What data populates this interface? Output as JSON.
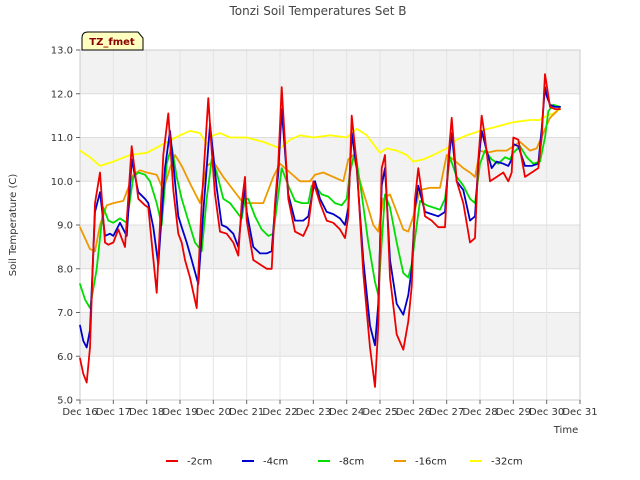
{
  "chart_data": {
    "type": "line",
    "title": "Tonzi Soil Temperatures Set B",
    "xlabel": "Time",
    "ylabel": "Soil Temperature (C)",
    "tag": "TZ_fmet",
    "xlim": [
      16,
      31
    ],
    "ylim": [
      5.0,
      13.0
    ],
    "x_ticks": [
      16,
      17,
      18,
      19,
      20,
      21,
      22,
      23,
      24,
      25,
      26,
      27,
      28,
      29,
      30,
      31
    ],
    "x_tick_labels": [
      "Dec 16",
      "Dec 17",
      "Dec 18",
      "Dec 19",
      "Dec 20",
      "Dec 21",
      "Dec 22",
      "Dec 23",
      "Dec 24",
      "Dec 25",
      "Dec 26",
      "Dec 27",
      "Dec 28",
      "Dec 29",
      "Dec 30",
      "Dec 31"
    ],
    "y_ticks": [
      5.0,
      6.0,
      7.0,
      8.0,
      9.0,
      10.0,
      11.0,
      12.0,
      13.0
    ],
    "y_tick_labels": [
      "5.0",
      "6.0",
      "7.0",
      "8.0",
      "9.0",
      "10.0",
      "11.0",
      "12.0",
      "13.0"
    ],
    "grid": true,
    "legend_position": "bottom",
    "series": [
      {
        "name": "-2cm",
        "color": "#ee0000",
        "x": [
          16.0,
          16.1,
          16.2,
          16.3,
          16.45,
          16.6,
          16.75,
          16.85,
          17.0,
          17.15,
          17.35,
          17.55,
          17.75,
          17.95,
          18.05,
          18.15,
          18.3,
          18.5,
          18.65,
          18.8,
          18.95,
          19.05,
          19.15,
          19.3,
          19.5,
          19.65,
          19.85,
          19.95,
          20.05,
          20.2,
          20.4,
          20.6,
          20.75,
          20.85,
          20.95,
          21.0,
          21.2,
          21.4,
          21.6,
          21.75,
          21.85,
          21.95,
          22.05,
          22.25,
          22.45,
          22.7,
          22.85,
          22.95,
          23.0,
          23.2,
          23.4,
          23.6,
          23.8,
          23.95,
          24.05,
          24.15,
          24.3,
          24.5,
          24.7,
          24.85,
          24.95,
          25.05,
          25.15,
          25.3,
          25.5,
          25.7,
          25.85,
          25.95,
          26.05,
          26.15,
          26.35,
          26.55,
          26.75,
          26.95,
          27.05,
          27.15,
          27.3,
          27.5,
          27.7,
          27.85,
          27.95,
          28.05,
          28.15,
          28.3,
          28.5,
          28.7,
          28.85,
          28.95,
          29.0,
          29.15,
          29.35,
          29.55,
          29.75,
          29.85,
          29.95,
          30.0,
          30.1,
          30.25,
          30.4
        ],
        "y": [
          5.95,
          5.6,
          5.4,
          6.2,
          9.5,
          10.2,
          8.6,
          8.55,
          8.6,
          8.9,
          8.5,
          10.8,
          9.6,
          9.45,
          9.4,
          8.6,
          7.45,
          10.6,
          11.55,
          9.8,
          8.8,
          8.6,
          8.2,
          7.8,
          7.1,
          9.5,
          11.9,
          10.7,
          9.7,
          8.85,
          8.8,
          8.6,
          8.3,
          9.5,
          10.1,
          9.1,
          8.2,
          8.1,
          8.0,
          8.0,
          9.5,
          10.4,
          12.15,
          9.6,
          8.85,
          8.75,
          9.0,
          9.6,
          10.0,
          9.5,
          9.1,
          9.05,
          8.9,
          8.7,
          9.2,
          11.5,
          10.4,
          7.9,
          6.2,
          5.3,
          6.7,
          10.3,
          10.6,
          7.8,
          6.5,
          6.15,
          6.8,
          7.6,
          9.6,
          10.3,
          9.2,
          9.1,
          8.95,
          8.95,
          10.5,
          11.45,
          10.0,
          9.5,
          8.6,
          8.7,
          10.5,
          11.5,
          11.0,
          10.0,
          10.1,
          10.2,
          10.0,
          10.2,
          11.0,
          10.95,
          10.1,
          10.2,
          10.3,
          11.0,
          12.45,
          12.2,
          11.7,
          11.65,
          11.65
        ]
      },
      {
        "name": "-4cm",
        "color": "#0000cc",
        "x": [
          16.0,
          16.1,
          16.2,
          16.3,
          16.45,
          16.6,
          16.75,
          16.9,
          17.0,
          17.2,
          17.4,
          17.55,
          17.75,
          17.95,
          18.05,
          18.2,
          18.35,
          18.55,
          18.7,
          18.85,
          18.95,
          19.05,
          19.2,
          19.35,
          19.55,
          19.7,
          19.9,
          20.0,
          20.1,
          20.25,
          20.4,
          20.6,
          20.75,
          20.85,
          20.95,
          21.0,
          21.2,
          21.4,
          21.6,
          21.75,
          21.85,
          21.95,
          22.05,
          22.25,
          22.45,
          22.7,
          22.85,
          22.95,
          23.05,
          23.2,
          23.4,
          23.6,
          23.8,
          23.95,
          24.05,
          24.15,
          24.3,
          24.5,
          24.7,
          24.85,
          24.95,
          25.05,
          25.15,
          25.3,
          25.5,
          25.7,
          25.85,
          25.95,
          26.05,
          26.15,
          26.35,
          26.55,
          26.75,
          26.95,
          27.05,
          27.15,
          27.3,
          27.5,
          27.7,
          27.85,
          27.95,
          28.05,
          28.2,
          28.35,
          28.5,
          28.7,
          28.85,
          28.95,
          29.0,
          29.15,
          29.35,
          29.55,
          29.75,
          29.85,
          29.95,
          30.0,
          30.1,
          30.25,
          30.4
        ],
        "y": [
          6.7,
          6.35,
          6.2,
          6.6,
          9.3,
          9.75,
          8.75,
          8.8,
          8.75,
          9.05,
          8.75,
          10.5,
          9.75,
          9.6,
          9.5,
          8.95,
          8.1,
          10.3,
          11.15,
          10.0,
          9.2,
          8.95,
          8.6,
          8.2,
          7.65,
          9.3,
          11.3,
          10.6,
          9.85,
          9.0,
          8.95,
          8.8,
          8.5,
          9.3,
          9.85,
          9.3,
          8.5,
          8.35,
          8.35,
          8.4,
          9.4,
          10.2,
          11.65,
          9.7,
          9.1,
          9.1,
          9.2,
          9.65,
          10.0,
          9.6,
          9.3,
          9.25,
          9.15,
          9.0,
          9.4,
          11.1,
          10.3,
          8.2,
          6.7,
          6.25,
          7.2,
          9.9,
          10.3,
          8.2,
          7.2,
          6.95,
          7.4,
          8.0,
          9.4,
          9.9,
          9.3,
          9.25,
          9.2,
          9.3,
          10.4,
          11.1,
          10.0,
          9.8,
          9.1,
          9.2,
          10.4,
          11.15,
          10.7,
          10.3,
          10.45,
          10.4,
          10.35,
          10.5,
          10.85,
          10.8,
          10.35,
          10.35,
          10.4,
          11.2,
          12.15,
          11.95,
          11.75,
          11.7,
          11.7
        ]
      },
      {
        "name": "-8cm",
        "color": "#00dd00",
        "x": [
          16.0,
          16.15,
          16.3,
          16.5,
          16.7,
          16.85,
          17.0,
          17.2,
          17.4,
          17.6,
          17.75,
          17.95,
          18.1,
          18.3,
          18.45,
          18.6,
          18.75,
          18.9,
          19.05,
          19.25,
          19.45,
          19.65,
          19.8,
          19.95,
          20.1,
          20.3,
          20.5,
          20.7,
          20.85,
          20.95,
          21.05,
          21.25,
          21.45,
          21.65,
          21.8,
          21.95,
          22.05,
          22.25,
          22.45,
          22.65,
          22.85,
          22.95,
          23.05,
          23.25,
          23.45,
          23.65,
          23.85,
          24.0,
          24.1,
          24.25,
          24.45,
          24.65,
          24.85,
          24.95,
          25.05,
          25.15,
          25.3,
          25.5,
          25.7,
          25.85,
          25.95,
          26.05,
          26.2,
          26.4,
          26.6,
          26.8,
          26.95,
          27.1,
          27.3,
          27.5,
          27.7,
          27.85,
          28.0,
          28.15,
          28.35,
          28.55,
          28.75,
          28.9,
          29.0,
          29.2,
          29.4,
          29.6,
          29.8,
          29.95,
          30.05,
          30.2,
          30.4
        ],
        "y": [
          7.65,
          7.3,
          7.1,
          8.0,
          9.4,
          9.1,
          9.05,
          9.15,
          9.05,
          10.1,
          10.2,
          10.15,
          10.0,
          9.5,
          9.0,
          10.4,
          10.8,
          10.1,
          9.6,
          9.1,
          8.6,
          8.4,
          9.6,
          10.5,
          10.2,
          9.6,
          9.5,
          9.3,
          9.15,
          9.6,
          9.6,
          9.2,
          8.9,
          8.75,
          8.8,
          9.7,
          10.3,
          9.9,
          9.55,
          9.5,
          9.5,
          9.9,
          9.9,
          9.7,
          9.65,
          9.5,
          9.45,
          9.6,
          10.2,
          10.7,
          9.7,
          8.6,
          7.7,
          7.4,
          8.6,
          9.7,
          9.4,
          8.6,
          7.9,
          7.8,
          8.1,
          8.7,
          9.55,
          9.45,
          9.4,
          9.35,
          9.6,
          10.55,
          10.1,
          9.9,
          9.6,
          9.5,
          10.4,
          10.7,
          10.5,
          10.4,
          10.55,
          10.5,
          10.65,
          10.8,
          10.55,
          10.4,
          10.45,
          11.0,
          11.6,
          11.75,
          11.7
        ]
      },
      {
        "name": "-16cm",
        "color": "#ee9900",
        "x": [
          16.0,
          16.15,
          16.3,
          16.45,
          16.6,
          16.8,
          17.0,
          17.3,
          17.6,
          17.8,
          18.0,
          18.3,
          18.5,
          18.7,
          18.85,
          19.05,
          19.3,
          19.6,
          19.8,
          20.0,
          20.3,
          20.6,
          20.9,
          21.2,
          21.5,
          21.8,
          22.0,
          22.3,
          22.6,
          22.9,
          23.05,
          23.3,
          23.6,
          23.9,
          24.05,
          24.2,
          24.4,
          24.6,
          24.8,
          24.95,
          25.1,
          25.3,
          25.5,
          25.7,
          25.85,
          26.0,
          26.2,
          26.5,
          26.8,
          27.0,
          27.2,
          27.5,
          27.7,
          27.85,
          28.0,
          28.2,
          28.5,
          28.8,
          29.0,
          29.2,
          29.5,
          29.7,
          29.9,
          30.1,
          30.3,
          30.4
        ],
        "y": [
          8.95,
          8.7,
          8.45,
          8.4,
          9.0,
          9.45,
          9.5,
          9.55,
          10.15,
          10.25,
          10.2,
          10.15,
          9.8,
          10.3,
          10.6,
          10.35,
          9.95,
          9.5,
          10.35,
          10.45,
          10.1,
          9.8,
          9.5,
          9.5,
          9.5,
          10.1,
          10.4,
          10.2,
          10.0,
          10.0,
          10.15,
          10.2,
          10.1,
          10.0,
          10.5,
          10.6,
          10.0,
          9.5,
          9.0,
          8.85,
          9.6,
          9.7,
          9.3,
          8.9,
          8.85,
          9.2,
          9.8,
          9.85,
          9.85,
          10.6,
          10.5,
          10.3,
          10.2,
          10.1,
          10.7,
          10.65,
          10.7,
          10.7,
          10.8,
          10.9,
          10.7,
          10.75,
          11.1,
          11.45,
          11.6,
          11.7
        ]
      },
      {
        "name": "-32cm",
        "color": "#ffff00",
        "x": [
          16.0,
          16.3,
          16.6,
          17.0,
          17.5,
          18.0,
          18.5,
          19.0,
          19.3,
          19.6,
          19.8,
          20.0,
          20.2,
          20.5,
          21.0,
          21.5,
          22.0,
          22.3,
          22.6,
          23.0,
          23.5,
          24.0,
          24.3,
          24.6,
          24.8,
          25.0,
          25.2,
          25.5,
          25.8,
          26.0,
          26.3,
          26.6,
          27.0,
          27.3,
          27.6,
          28.0,
          28.5,
          29.0,
          29.5,
          29.8,
          30.0,
          30.2,
          30.4
        ],
        "y": [
          10.7,
          10.55,
          10.35,
          10.45,
          10.6,
          10.65,
          10.85,
          11.05,
          11.15,
          11.1,
          10.85,
          11.05,
          11.1,
          11.0,
          11.0,
          10.9,
          10.75,
          10.95,
          11.05,
          11.0,
          11.05,
          11.0,
          11.2,
          11.05,
          10.85,
          10.65,
          10.75,
          10.7,
          10.6,
          10.45,
          10.5,
          10.6,
          10.75,
          10.95,
          11.05,
          11.15,
          11.25,
          11.35,
          11.4,
          11.4,
          11.5,
          11.55,
          11.65
        ]
      }
    ]
  }
}
